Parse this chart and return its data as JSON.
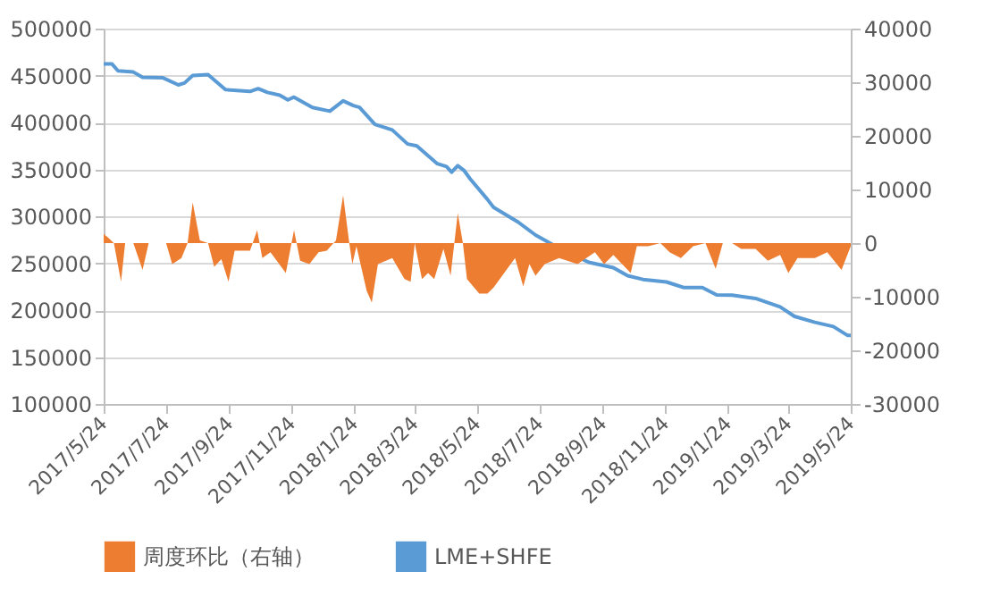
{
  "chart_data": {
    "type": "line",
    "xlim": [
      "2017-05-24",
      "2019-05-24"
    ],
    "xticks": [
      {
        "value": "2017-05-24",
        "label": "2017/5/24"
      },
      {
        "value": "2017-07-24",
        "label": "2017/7/24"
      },
      {
        "value": "2017-09-24",
        "label": "2017/9/24"
      },
      {
        "value": "2017-11-24",
        "label": "2017/11/24"
      },
      {
        "value": "2018-01-24",
        "label": "2018/1/24"
      },
      {
        "value": "2018-03-24",
        "label": "2018/3/24"
      },
      {
        "value": "2018-05-24",
        "label": "2018/5/24"
      },
      {
        "value": "2018-07-24",
        "label": "2018/7/24"
      },
      {
        "value": "2018-09-24",
        "label": "2018/9/24"
      },
      {
        "value": "2018-11-24",
        "label": "2018/11/24"
      },
      {
        "value": "2019-01-24",
        "label": "2019/1/24"
      },
      {
        "value": "2019-03-24",
        "label": "2019/3/24"
      },
      {
        "value": "2019-05-24",
        "label": "2019/5/24"
      }
    ],
    "ylim": [
      100000,
      500000
    ],
    "yticks": [
      100000,
      150000,
      200000,
      250000,
      300000,
      350000,
      400000,
      450000,
      500000
    ],
    "y2lim": [
      -30000,
      40000
    ],
    "y2ticks": [
      -30000,
      -20000,
      -10000,
      0,
      10000,
      20000,
      30000,
      40000
    ],
    "grid": "y",
    "legend": "bottom",
    "series": [
      {
        "name": "周度环比（右轴）",
        "type": "area",
        "axis": "y2",
        "color": "#ed7d31",
        "x": [
          "2017-05-24",
          "2017-05-29",
          "2017-06-03",
          "2017-06-10",
          "2017-06-14",
          "2017-06-22",
          "2017-07-01",
          "2017-07-07",
          "2017-07-24",
          "2017-07-30",
          "2017-08-08",
          "2017-08-14",
          "2017-08-19",
          "2017-08-26",
          "2017-09-03",
          "2017-09-09",
          "2017-09-16",
          "2017-09-23",
          "2017-09-29",
          "2017-10-14",
          "2017-10-21",
          "2017-10-26",
          "2017-11-03",
          "2017-11-18",
          "2017-11-26",
          "2017-12-02",
          "2017-12-11",
          "2017-12-20",
          "2017-12-28",
          "2018-01-06",
          "2018-01-13",
          "2018-01-19",
          "2018-01-22",
          "2018-01-26",
          "2018-02-05",
          "2018-02-10",
          "2018-02-16",
          "2018-03-02",
          "2018-03-14",
          "2018-03-20",
          "2018-03-24",
          "2018-03-31",
          "2018-04-06",
          "2018-04-12",
          "2018-04-21",
          "2018-04-28",
          "2018-05-05",
          "2018-05-10",
          "2018-05-14",
          "2018-05-26",
          "2018-06-03",
          "2018-06-09",
          "2018-06-30",
          "2018-07-08",
          "2018-07-14",
          "2018-07-20",
          "2018-07-29",
          "2018-08-12",
          "2018-08-30",
          "2018-09-16",
          "2018-09-25",
          "2018-10-04",
          "2018-10-21",
          "2018-10-27",
          "2018-11-07",
          "2018-11-19",
          "2018-11-28",
          "2018-12-09",
          "2018-12-21",
          "2019-01-02",
          "2019-01-12",
          "2019-01-19",
          "2019-01-28",
          "2019-02-06",
          "2019-02-20",
          "2019-03-04",
          "2019-03-16",
          "2019-03-24",
          "2019-04-02",
          "2019-04-19",
          "2019-05-01",
          "2019-05-15",
          "2019-05-24"
        ],
        "values": [
          1700,
          900,
          0,
          -7200,
          0,
          0,
          -5000,
          0,
          0,
          -3900,
          -2800,
          0,
          7600,
          500,
          0,
          -4400,
          -3000,
          -7200,
          -1400,
          -1400,
          2400,
          -2800,
          -1700,
          -5600,
          2400,
          -3300,
          -3900,
          -1700,
          -1400,
          500,
          8900,
          0,
          -3900,
          -600,
          -8900,
          -11100,
          -3900,
          -2800,
          -6700,
          -7200,
          0,
          -6700,
          -5600,
          -6700,
          -1100,
          -6100,
          5600,
          0,
          -6700,
          -9400,
          -9400,
          -8300,
          -2800,
          -8100,
          -3900,
          -6100,
          -3900,
          -2800,
          -3900,
          -1700,
          -3900,
          -2200,
          -5600,
          -600,
          -600,
          0,
          -1700,
          -2800,
          -600,
          0,
          -4800,
          0,
          0,
          -1100,
          -1100,
          -3300,
          -2200,
          -5600,
          -2800,
          -2800,
          -1700,
          -5000,
          -600
        ]
      },
      {
        "name": "LME+SHFE",
        "color": "#5b9bd5",
        "x": [
          "2017-05-24",
          "2017-06-01",
          "2017-06-07",
          "2017-06-22",
          "2017-07-01",
          "2017-07-21",
          "2017-08-05",
          "2017-08-11",
          "2017-08-19",
          "2017-09-03",
          "2017-09-20",
          "2017-10-14",
          "2017-10-22",
          "2017-10-31",
          "2017-11-12",
          "2017-11-20",
          "2017-11-26",
          "2017-12-14",
          "2017-12-31",
          "2018-01-13",
          "2018-01-23",
          "2018-01-29",
          "2018-02-13",
          "2018-03-02",
          "2018-03-17",
          "2018-03-26",
          "2018-04-15",
          "2018-04-24",
          "2018-04-29",
          "2018-05-05",
          "2018-05-11",
          "2018-05-17",
          "2018-06-03",
          "2018-06-09",
          "2018-07-03",
          "2018-07-20",
          "2018-08-12",
          "2018-09-10",
          "2018-10-04",
          "2018-10-18",
          "2018-11-02",
          "2018-11-25",
          "2018-12-12",
          "2018-12-30",
          "2019-01-13",
          "2019-01-28",
          "2019-02-20",
          "2019-03-16",
          "2019-03-30",
          "2019-04-19",
          "2019-05-07",
          "2019-05-21",
          "2019-05-24"
        ],
        "values": [
          462500,
          462500,
          455000,
          453700,
          448000,
          447500,
          440000,
          442000,
          450000,
          451000,
          435000,
          433000,
          436000,
          432000,
          429000,
          424000,
          427000,
          416000,
          412000,
          423000,
          418000,
          416000,
          398000,
          392000,
          377000,
          375000,
          356000,
          353000,
          347000,
          354000,
          349000,
          340000,
          318000,
          309500,
          293800,
          280000,
          266000,
          251000,
          245300,
          236600,
          232700,
          230000,
          224000,
          224000,
          216200,
          216000,
          212400,
          203400,
          193300,
          187000,
          182500,
          173000,
          173000
        ]
      }
    ]
  }
}
